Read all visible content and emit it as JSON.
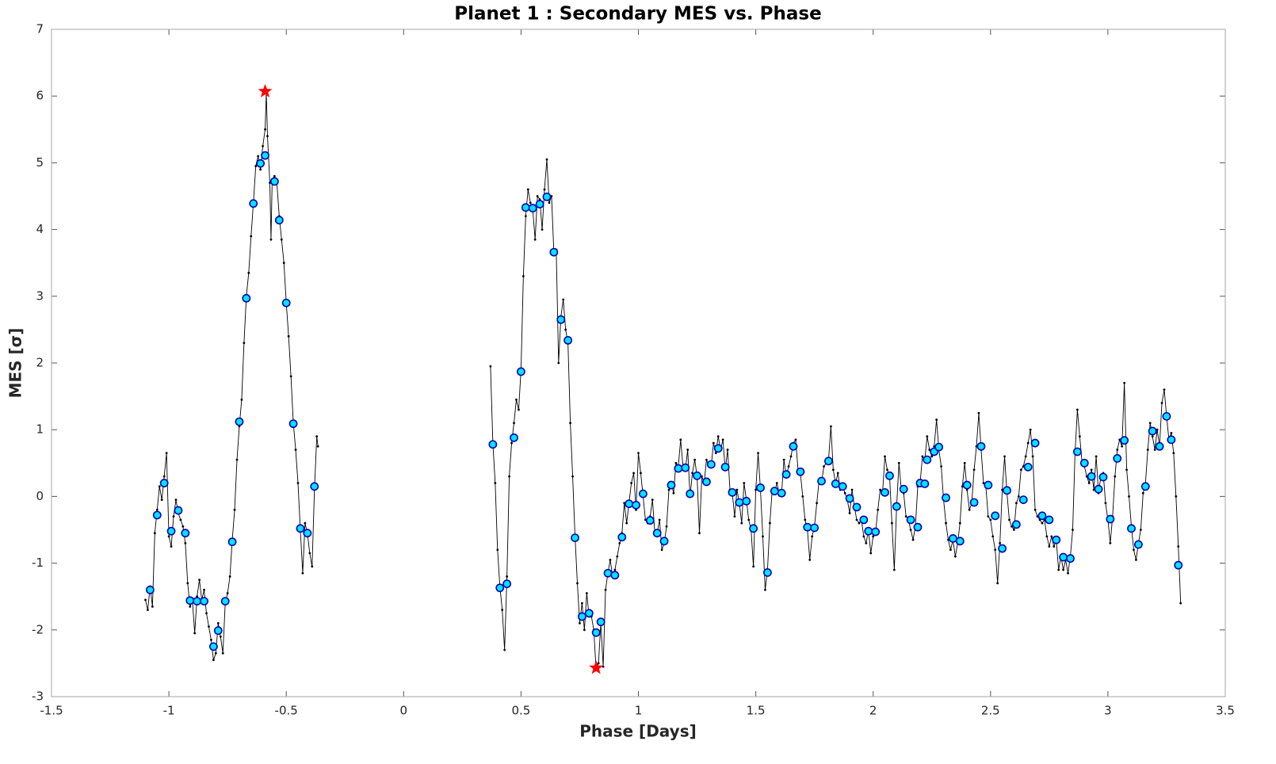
{
  "chart_data": {
    "type": "line",
    "title": "Planet 1 : Secondary MES vs. Phase",
    "x_label": "Phase [Days]",
    "y_label": "MES [σ]",
    "xlim": [
      -1.5,
      3.5
    ],
    "ylim": [
      -3,
      7
    ],
    "xticks": [
      -1.5,
      -1,
      -0.5,
      0,
      0.5,
      1,
      1.5,
      2,
      2.5,
      3,
      3.5
    ],
    "yticks": [
      -3,
      -2,
      -1,
      0,
      1,
      2,
      3,
      4,
      5,
      6,
      7
    ],
    "series": [
      {
        "marker": "dot",
        "color": "#000000",
        "x": [
          -1.1,
          -1.09,
          -1.08,
          -1.07,
          -1.06,
          -1.05,
          -1.04,
          -1.03,
          -1.02,
          -1.01,
          -1,
          -0.99,
          -0.98,
          -0.97,
          -0.96,
          -0.95,
          -0.94,
          -0.93,
          -0.92,
          -0.91,
          -0.9,
          -0.89,
          -0.88,
          -0.87,
          -0.86,
          -0.85,
          -0.84,
          -0.83,
          -0.82,
          -0.81,
          -0.8,
          -0.79,
          -0.78,
          -0.77,
          -0.76,
          -0.75,
          -0.74,
          -0.73,
          -0.72,
          -0.71,
          -0.7,
          -0.69,
          -0.68,
          -0.67,
          -0.66,
          -0.65,
          -0.64,
          -0.63,
          -0.62,
          -0.61,
          -0.6,
          -0.59,
          -0.585,
          -0.58,
          -0.57,
          -0.565,
          -0.56,
          -0.55,
          -0.54,
          -0.53,
          -0.52,
          -0.51,
          -0.5,
          -0.49,
          -0.48,
          -0.47,
          -0.46,
          -0.45,
          -0.44,
          -0.43,
          -0.42,
          -0.41,
          -0.4,
          -0.39,
          -0.38,
          -0.37,
          -0.365,
          null,
          0.37,
          0.38,
          0.39,
          0.4,
          0.41,
          0.42,
          0.43,
          0.44,
          0.45,
          0.46,
          0.47,
          0.48,
          0.49,
          0.5,
          0.51,
          0.52,
          0.53,
          0.54,
          0.55,
          0.56,
          0.57,
          0.58,
          0.59,
          0.6,
          0.61,
          0.62,
          0.63,
          0.64,
          0.65,
          0.66,
          0.67,
          0.68,
          0.69,
          0.7,
          0.71,
          0.72,
          0.73,
          0.74,
          0.75,
          0.76,
          0.77,
          0.78,
          0.79,
          0.8,
          0.81,
          0.82,
          0.83,
          0.84,
          0.85,
          0.86,
          0.87,
          0.88,
          0.89,
          0.9,
          0.91,
          0.92,
          0.93,
          0.94,
          0.95,
          0.96,
          0.97,
          0.98,
          0.99,
          1,
          1.01,
          1.02,
          1.03,
          1.04,
          1.05,
          1.06,
          1.07,
          1.08,
          1.09,
          1.1,
          1.11,
          1.12,
          1.13,
          1.14,
          1.15,
          1.16,
          1.17,
          1.18,
          1.19,
          1.2,
          1.21,
          1.22,
          1.23,
          1.24,
          1.25,
          1.26,
          1.27,
          1.28,
          1.29,
          1.3,
          1.31,
          1.32,
          1.33,
          1.34,
          1.35,
          1.36,
          1.37,
          1.38,
          1.39,
          1.4,
          1.41,
          1.42,
          1.43,
          1.44,
          1.45,
          1.46,
          1.47,
          1.48,
          1.49,
          1.5,
          1.51,
          1.52,
          1.53,
          1.54,
          1.55,
          1.56,
          1.57,
          1.58,
          1.59,
          1.6,
          1.61,
          1.62,
          1.63,
          1.64,
          1.65,
          1.66,
          1.67,
          1.68,
          1.69,
          1.7,
          1.71,
          1.72,
          1.73,
          1.74,
          1.75,
          1.76,
          1.77,
          1.78,
          1.79,
          1.8,
          1.81,
          1.82,
          1.83,
          1.84,
          1.85,
          1.86,
          1.87,
          1.88,
          1.89,
          1.9,
          1.91,
          1.92,
          1.93,
          1.94,
          1.95,
          1.96,
          1.97,
          1.98,
          1.99,
          2,
          2.01,
          2.02,
          2.03,
          2.04,
          2.05,
          2.06,
          2.07,
          2.08,
          2.09,
          2.1,
          2.11,
          2.12,
          2.13,
          2.14,
          2.15,
          2.16,
          2.17,
          2.18,
          2.19,
          2.2,
          2.21,
          2.22,
          2.23,
          2.24,
          2.25,
          2.26,
          2.27,
          2.28,
          2.29,
          2.3,
          2.31,
          2.32,
          2.33,
          2.34,
          2.35,
          2.36,
          2.37,
          2.38,
          2.39,
          2.4,
          2.41,
          2.42,
          2.43,
          2.44,
          2.45,
          2.46,
          2.47,
          2.48,
          2.49,
          2.5,
          2.51,
          2.52,
          2.53,
          2.54,
          2.55,
          2.56,
          2.57,
          2.58,
          2.59,
          2.6,
          2.61,
          2.62,
          2.63,
          2.64,
          2.65,
          2.66,
          2.67,
          2.68,
          2.69,
          2.7,
          2.71,
          2.72,
          2.73,
          2.74,
          2.75,
          2.76,
          2.77,
          2.78,
          2.79,
          2.8,
          2.81,
          2.82,
          2.83,
          2.84,
          2.85,
          2.86,
          2.87,
          2.88,
          2.89,
          2.9,
          2.91,
          2.92,
          2.93,
          2.94,
          2.95,
          2.96,
          2.97,
          2.98,
          2.99,
          3,
          3.01,
          3.02,
          3.03,
          3.04,
          3.05,
          3.06,
          3.07,
          3.08,
          3.09,
          3.1,
          3.11,
          3.12,
          3.13,
          3.14,
          3.15,
          3.16,
          3.17,
          3.18,
          3.19,
          3.2,
          3.21,
          3.22,
          3.23,
          3.24,
          3.25,
          3.26,
          3.27,
          3.28,
          3.29,
          3.3,
          3.31
        ],
        "values": [
          -1.55,
          -1.7,
          -1.35,
          -1.65,
          -0.55,
          -0.2,
          0.15,
          -0.05,
          0.3,
          0.65,
          -0.6,
          -0.75,
          -0.3,
          -0.05,
          -0.25,
          -0.35,
          -0.45,
          -0.7,
          -1.3,
          -1.65,
          -1.55,
          -2.05,
          -1.5,
          -1.25,
          -1.55,
          -1.4,
          -1.75,
          -1.95,
          -2.15,
          -2.45,
          -2.35,
          -1.9,
          -2.1,
          -2.35,
          -1.6,
          -1.45,
          -1.2,
          -0.65,
          -0.2,
          0.55,
          1.05,
          1.45,
          2.3,
          3.0,
          3.35,
          3.9,
          4.4,
          4.95,
          5.1,
          4.9,
          5.25,
          5.5,
          6.05,
          5.4,
          4.7,
          3.85,
          4.75,
          4.8,
          4.7,
          4.2,
          3.85,
          3.5,
          2.9,
          2.4,
          1.8,
          1.1,
          0.7,
          0.2,
          -0.5,
          -1.15,
          -0.4,
          -0.55,
          -0.85,
          -1.05,
          0.1,
          0.9,
          0.75,
          null,
          1.95,
          0.8,
          0.2,
          -0.8,
          -1.35,
          -1.7,
          -2.3,
          -1.2,
          0.3,
          0.8,
          1.1,
          1.45,
          1.3,
          1.9,
          3.3,
          4.2,
          4.6,
          4.4,
          4.3,
          3.85,
          4.5,
          4.45,
          4.0,
          4.6,
          5.05,
          4.4,
          4.5,
          3.65,
          3.7,
          2.0,
          2.7,
          2.95,
          2.5,
          2.3,
          1.1,
          0.3,
          -0.6,
          -1.3,
          -1.9,
          -1.6,
          -2.0,
          -1.45,
          -1.8,
          -1.8,
          -2.0,
          -2.6,
          -2.5,
          -1.9,
          -2.55,
          -1.4,
          -1.15,
          -0.95,
          -1.2,
          -1.1,
          -0.9,
          -0.7,
          -0.55,
          -0.1,
          -0.4,
          -0.1,
          0.2,
          0.35,
          -0.2,
          0.65,
          0.35,
          0.0,
          -0.35,
          -0.4,
          -0.3,
          -0.05,
          -0.55,
          -0.55,
          -0.35,
          -0.8,
          -0.7,
          -0.45,
          0.1,
          0.2,
          0.05,
          0.5,
          0.45,
          0.85,
          0.45,
          0.4,
          0.7,
          0.0,
          0.35,
          0.55,
          0.3,
          -0.55,
          0.3,
          0.2,
          0.55,
          0.45,
          0.45,
          0.8,
          0.65,
          0.9,
          0.7,
          0.85,
          0.4,
          0.7,
          0.1,
          0.05,
          -0.3,
          0.1,
          -0.1,
          -0.4,
          0.2,
          -0.05,
          -0.35,
          -0.5,
          -1.05,
          0.1,
          0.65,
          0.1,
          -0.6,
          -1.4,
          -1.1,
          -0.4,
          0.1,
          0.05,
          0.2,
          0.05,
          0.05,
          0.55,
          0.3,
          0.45,
          0.6,
          0.8,
          0.85,
          0.4,
          0.35,
          0.0,
          -0.35,
          -0.5,
          -0.95,
          -0.6,
          -0.45,
          -0.1,
          0.25,
          0.2,
          0.45,
          0.5,
          0.55,
          1.05,
          0.4,
          0.2,
          0.35,
          0.1,
          0.15,
          0.05,
          -0.05,
          -0.25,
          0.1,
          -0.15,
          -0.35,
          -0.4,
          -0.35,
          -0.6,
          -0.7,
          -0.5,
          -0.85,
          -0.6,
          -0.55,
          -0.2,
          0.1,
          0.05,
          0.6,
          0.4,
          0.3,
          -0.4,
          -1.1,
          -0.15,
          0.5,
          0.1,
          0.05,
          -0.3,
          -0.35,
          -0.5,
          -0.65,
          -0.45,
          0.15,
          0.2,
          0.6,
          0.55,
          0.9,
          0.7,
          0.6,
          0.75,
          1.15,
          0.7,
          0.45,
          -0.05,
          -0.4,
          -0.65,
          -0.8,
          -0.65,
          -0.9,
          -0.7,
          -0.4,
          0.15,
          0.5,
          0.1,
          -0.2,
          -0.1,
          0.4,
          0.75,
          1.25,
          0.7,
          0.2,
          0.15,
          -0.3,
          -0.35,
          -0.6,
          -0.8,
          -1.3,
          -0.7,
          0.1,
          0.6,
          0.05,
          -0.35,
          -0.45,
          -0.5,
          -0.1,
          0.0,
          0.4,
          0.45,
          0.6,
          0.8,
          1.0,
          0.6,
          -0.2,
          -0.3,
          -0.35,
          -0.4,
          -0.35,
          -0.6,
          -0.75,
          -0.6,
          -0.75,
          -0.65,
          -1.1,
          -0.9,
          -1.1,
          -0.95,
          -1.15,
          -0.9,
          -0.5,
          0.65,
          1.3,
          0.9,
          0.5,
          0.45,
          0.3,
          0.2,
          0.4,
          0.1,
          0.6,
          0.05,
          0.3,
          0.35,
          -0.1,
          -0.35,
          -0.7,
          -0.3,
          0.3,
          0.7,
          0.85,
          0.75,
          1.7,
          0.4,
          0.0,
          -0.45,
          -0.8,
          -0.95,
          -0.7,
          -0.5,
          0.05,
          0.2,
          0.7,
          1.1,
          0.9,
          0.7,
          1.0,
          0.75,
          1.4,
          1.6,
          1.2,
          0.85,
          0.95,
          0.65,
          0.0,
          -0.75,
          -1.6
        ]
      },
      {
        "marker": "circle",
        "color": "#00e5ff",
        "edge_color": "#0000b4",
        "x": [
          -1.08,
          -1.05,
          -1.02,
          -0.99,
          -0.96,
          -0.93,
          -0.91,
          -0.88,
          -0.85,
          -0.81,
          -0.79,
          -0.76,
          -0.73,
          -0.7,
          -0.67,
          -0.64,
          -0.61,
          -0.59,
          -0.55,
          -0.53,
          -0.5,
          -0.47,
          -0.44,
          -0.41,
          -0.38,
          0.38,
          0.41,
          0.44,
          0.47,
          0.5,
          0.52,
          0.55,
          0.58,
          0.61,
          0.64,
          0.67,
          0.7,
          0.73,
          0.76,
          0.79,
          0.82,
          0.84,
          0.87,
          0.9,
          0.93,
          0.96,
          0.99,
          1.02,
          1.05,
          1.08,
          1.11,
          1.14,
          1.17,
          1.2,
          1.22,
          1.25,
          1.29,
          1.31,
          1.34,
          1.37,
          1.4,
          1.43,
          1.46,
          1.49,
          1.52,
          1.55,
          1.58,
          1.61,
          1.63,
          1.66,
          1.69,
          1.72,
          1.75,
          1.78,
          1.81,
          1.84,
          1.87,
          1.9,
          1.93,
          1.96,
          1.98,
          2.01,
          2.05,
          2.07,
          2.1,
          2.13,
          2.16,
          2.19,
          2.2,
          2.22,
          2.23,
          2.26,
          2.28,
          2.31,
          2.34,
          2.37,
          2.4,
          2.43,
          2.46,
          2.49,
          2.52,
          2.55,
          2.57,
          2.61,
          2.64,
          2.66,
          2.69,
          2.72,
          2.75,
          2.78,
          2.81,
          2.84,
          2.87,
          2.9,
          2.93,
          2.96,
          2.98,
          3.01,
          3.04,
          3.07,
          3.1,
          3.13,
          3.16,
          3.19,
          3.22,
          3.25,
          3.27,
          3.3
        ],
        "values": [
          -1.4,
          -0.28,
          0.2,
          -0.52,
          -0.21,
          -0.55,
          -1.56,
          -1.57,
          -1.57,
          -2.25,
          -2.01,
          -1.57,
          -0.68,
          1.12,
          2.97,
          4.39,
          4.99,
          5.11,
          4.72,
          4.14,
          2.9,
          1.09,
          -0.48,
          -0.55,
          0.15,
          0.78,
          -1.37,
          -1.31,
          0.88,
          1.87,
          4.33,
          4.32,
          4.38,
          4.49,
          3.66,
          2.65,
          2.34,
          -0.62,
          -1.8,
          -1.75,
          -2.04,
          -1.88,
          -1.15,
          -1.18,
          -0.61,
          -0.11,
          -0.13,
          0.04,
          -0.36,
          -0.55,
          -0.67,
          0.17,
          0.42,
          0.43,
          0.04,
          0.31,
          0.22,
          0.48,
          0.72,
          0.44,
          0.06,
          -0.09,
          -0.07,
          -0.48,
          0.13,
          -1.14,
          0.08,
          0.05,
          0.33,
          0.75,
          0.37,
          -0.46,
          -0.47,
          0.23,
          0.53,
          0.19,
          0.15,
          -0.03,
          -0.16,
          -0.35,
          -0.52,
          -0.53,
          0.06,
          0.31,
          -0.15,
          0.11,
          -0.35,
          -0.46,
          0.2,
          0.19,
          0.55,
          0.67,
          0.74,
          -0.02,
          -0.63,
          -0.67,
          0.17,
          -0.09,
          0.75,
          0.17,
          -0.29,
          -0.78,
          0.09,
          -0.42,
          -0.05,
          0.44,
          0.8,
          -0.29,
          -0.35,
          -0.65,
          -0.91,
          -0.93,
          0.67,
          0.5,
          0.3,
          0.11,
          0.29,
          -0.34,
          0.57,
          0.84,
          -0.48,
          -0.72,
          0.15,
          0.98,
          0.75,
          1.2,
          0.85,
          -1.03
        ]
      },
      {
        "marker": "star",
        "color": "#ff0000",
        "x": [
          -0.59,
          0.82
        ],
        "values": [
          6.07,
          -2.57
        ]
      }
    ]
  }
}
